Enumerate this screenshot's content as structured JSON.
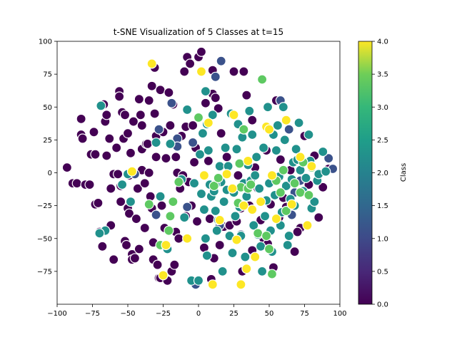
{
  "chart_data": {
    "type": "scatter",
    "title": "t-SNE Visualization of 5 Classes at t=15",
    "xlabel": "",
    "ylabel": "",
    "xlim": [
      -100,
      100
    ],
    "ylim": [
      -100,
      100
    ],
    "xticks": [
      "−100",
      "−75",
      "−50",
      "−25",
      "0",
      "25",
      "50",
      "75",
      "100"
    ],
    "yticks": [
      "−75",
      "−50",
      "−25",
      "0",
      "25",
      "50",
      "75",
      "100"
    ],
    "colorbar": {
      "label": "Class",
      "range": [
        0,
        4
      ],
      "ticks": [
        "0.0",
        "0.5",
        "1.0",
        "1.5",
        "2.0",
        "2.5",
        "3.0",
        "3.5",
        "4.0"
      ],
      "colormap": "viridis"
    },
    "grid": false,
    "series": [
      {
        "class": 0,
        "color": "#440154",
        "points": [
          [
            -93,
            4
          ],
          [
            -89,
            -8
          ],
          [
            -86,
            -8
          ],
          [
            -83,
            41
          ],
          [
            -83,
            29
          ],
          [
            -82,
            26
          ],
          [
            -80,
            -9
          ],
          [
            -77,
            -9
          ],
          [
            -76,
            14
          ],
          [
            -73,
            14
          ],
          [
            -74,
            31
          ],
          [
            -73,
            -24
          ],
          [
            -71,
            -23
          ],
          [
            -70,
            -45
          ],
          [
            -68,
            -56
          ],
          [
            -67,
            52
          ],
          [
            -66,
            39
          ],
          [
            -65,
            44
          ],
          [
            -65,
            13
          ],
          [
            -63,
            26
          ],
          [
            -62,
            -40
          ],
          [
            -62,
            -12
          ],
          [
            -60,
            -1
          ],
          [
            -58,
            19
          ],
          [
            -57,
            -1
          ],
          [
            -56,
            62
          ],
          [
            -56,
            58
          ],
          [
            -55,
            -10
          ],
          [
            -55,
            -22
          ],
          [
            -54,
            46
          ],
          [
            -53,
            26
          ],
          [
            -52,
            44
          ],
          [
            -52,
            -52
          ],
          [
            -51,
            -55
          ],
          [
            -50,
            30
          ],
          [
            -50,
            -27
          ],
          [
            -49,
            -2
          ],
          [
            -49,
            -31
          ],
          [
            -48,
            15
          ],
          [
            -47,
            -62
          ],
          [
            -47,
            -66
          ],
          [
            -46,
            39
          ],
          [
            -45,
            -65
          ],
          [
            -44,
            -35
          ],
          [
            -43,
            -12
          ],
          [
            -42,
            56
          ],
          [
            -41,
            44
          ],
          [
            -40,
            36
          ],
          [
            -40,
            18
          ],
          [
            -40,
            2
          ],
          [
            -38,
            -42
          ],
          [
            -38,
            -8
          ],
          [
            -37,
            22
          ],
          [
            -36,
            22
          ],
          [
            -35,
            55
          ],
          [
            -35,
            0
          ],
          [
            -34,
            -18
          ],
          [
            -33,
            66
          ],
          [
            -33,
            -27
          ],
          [
            -32,
            -53
          ],
          [
            -32,
            -66
          ],
          [
            -31,
            80
          ],
          [
            -31,
            45
          ],
          [
            -30,
            28
          ],
          [
            -30,
            12
          ],
          [
            -29,
            -70
          ],
          [
            -28,
            -80
          ],
          [
            -27,
            63
          ],
          [
            -27,
            -80
          ],
          [
            -26,
            -25
          ],
          [
            -25,
            31
          ],
          [
            -24,
            -42
          ],
          [
            -23,
            11
          ],
          [
            -22,
            -82
          ],
          [
            -21,
            61
          ],
          [
            -20,
            36
          ],
          [
            -19,
            -75
          ],
          [
            -17,
            -70
          ],
          [
            -16,
            12
          ],
          [
            -16,
            -45
          ],
          [
            -15,
            0
          ],
          [
            -13,
            -12
          ],
          [
            -12,
            28
          ],
          [
            -11,
            -2
          ],
          [
            -10,
            77
          ],
          [
            -9,
            -33
          ],
          [
            -9,
            35
          ],
          [
            -8,
            88
          ],
          [
            -7,
            -7
          ],
          [
            -6,
            83
          ],
          [
            -5,
            -25
          ],
          [
            -4,
            36
          ],
          [
            -3,
            8
          ],
          [
            -2,
            19
          ],
          [
            -1,
            -37
          ],
          [
            0,
            88
          ],
          [
            2,
            92
          ],
          [
            3,
            30
          ],
          [
            5,
            53
          ],
          [
            7,
            9
          ],
          [
            8,
            -35
          ],
          [
            9,
            -81
          ],
          [
            10,
            78
          ],
          [
            10,
            60
          ],
          [
            11,
            -65
          ],
          [
            12,
            57
          ],
          [
            14,
            49
          ],
          [
            15,
            -55
          ],
          [
            16,
            30
          ],
          [
            18,
            -41
          ],
          [
            20,
            12
          ],
          [
            22,
            -40
          ],
          [
            25,
            77
          ],
          [
            27,
            -37
          ],
          [
            28,
            -2
          ],
          [
            30,
            -27
          ],
          [
            31,
            -75
          ],
          [
            32,
            77
          ],
          [
            34,
            59
          ],
          [
            36,
            -25
          ],
          [
            38,
            -59
          ],
          [
            40,
            4
          ],
          [
            42,
            -12
          ],
          [
            44,
            -36
          ],
          [
            46,
            -50
          ],
          [
            48,
            17
          ],
          [
            49,
            -54
          ],
          [
            51,
            -24
          ],
          [
            53,
            -72
          ],
          [
            55,
            55
          ],
          [
            57,
            -34
          ],
          [
            60,
            -19
          ],
          [
            62,
            -26
          ],
          [
            65,
            2
          ],
          [
            68,
            -60
          ],
          [
            72,
            -42
          ],
          [
            75,
            28
          ],
          [
            78,
            -9
          ],
          [
            82,
            13
          ],
          [
            85,
            -34
          ],
          [
            88,
            -11
          ],
          [
            92,
            3
          ],
          [
            -42,
            -58
          ],
          [
            -60,
            -66
          ],
          [
            -18,
            52
          ],
          [
            -14,
            -50
          ],
          [
            4,
            -57
          ],
          [
            38,
            40
          ],
          [
            58,
            10
          ],
          [
            70,
            -45
          ]
        ]
      },
      {
        "class": 1,
        "color": "#3b528b",
        "points": [
          [
            -45,
            -1
          ],
          [
            -30,
            -32
          ],
          [
            -28,
            33
          ],
          [
            -19,
            53
          ],
          [
            -15,
            26
          ],
          [
            -15,
            20
          ],
          [
            -8,
            -26
          ],
          [
            -4,
            23
          ],
          [
            -2,
            -85
          ],
          [
            12,
            73
          ],
          [
            15,
            -40
          ],
          [
            16,
            85
          ],
          [
            30,
            -47
          ],
          [
            58,
            55
          ],
          [
            64,
            33
          ],
          [
            66,
            -32
          ],
          [
            68,
            -15
          ],
          [
            72,
            -6
          ],
          [
            92,
            11
          ],
          [
            95,
            3
          ]
        ]
      },
      {
        "class": 2,
        "color": "#21918c",
        "points": [
          [
            -69,
            51
          ],
          [
            -66,
            -44
          ],
          [
            -54,
            -9
          ],
          [
            -50,
            -1
          ],
          [
            -48,
            -22
          ],
          [
            -30,
            23
          ],
          [
            -27,
            -18
          ],
          [
            -22,
            -58
          ],
          [
            -20,
            22
          ],
          [
            -12,
            -5
          ],
          [
            -10,
            -34
          ],
          [
            -8,
            48
          ],
          [
            -5,
            -82
          ],
          [
            -3,
            -8
          ],
          [
            0,
            -82
          ],
          [
            1,
            14
          ],
          [
            2,
            -16
          ],
          [
            3,
            30
          ],
          [
            4,
            -28
          ],
          [
            5,
            -50
          ],
          [
            6,
            -63
          ],
          [
            6,
            37
          ],
          [
            7,
            17
          ],
          [
            8,
            -9
          ],
          [
            9,
            -18
          ],
          [
            10,
            44
          ],
          [
            11,
            -14
          ],
          [
            12,
            -29
          ],
          [
            13,
            -44
          ],
          [
            14,
            -36
          ],
          [
            15,
            5
          ],
          [
            16,
            -7
          ],
          [
            17,
            -75
          ],
          [
            18,
            -22
          ],
          [
            19,
            19
          ],
          [
            20,
            -13
          ],
          [
            21,
            5
          ],
          [
            22,
            -48
          ],
          [
            23,
            45
          ],
          [
            24,
            -61
          ],
          [
            25,
            -15
          ],
          [
            26,
            -33
          ],
          [
            27,
            18
          ],
          [
            28,
            37
          ],
          [
            29,
            -26
          ],
          [
            30,
            -48
          ],
          [
            31,
            27
          ],
          [
            32,
            -8
          ],
          [
            33,
            -64
          ],
          [
            34,
            -18
          ],
          [
            35,
            6
          ],
          [
            36,
            47
          ],
          [
            37,
            -6
          ],
          [
            38,
            29
          ],
          [
            39,
            -40
          ],
          [
            40,
            -2
          ],
          [
            41,
            12
          ],
          [
            42,
            -47
          ],
          [
            43,
            -12
          ],
          [
            44,
            -56
          ],
          [
            45,
            -75
          ],
          [
            46,
            19
          ],
          [
            47,
            -33
          ],
          [
            48,
            -21
          ],
          [
            49,
            50
          ],
          [
            50,
            -8
          ],
          [
            51,
            -44
          ],
          [
            52,
            -60
          ],
          [
            53,
            29
          ],
          [
            54,
            -17
          ],
          [
            55,
            17
          ],
          [
            56,
            36
          ],
          [
            57,
            -3
          ],
          [
            58,
            -40
          ],
          [
            59,
            -30
          ],
          [
            60,
            50
          ],
          [
            61,
            25
          ],
          [
            62,
            -10
          ],
          [
            63,
            -55
          ],
          [
            64,
            -48
          ],
          [
            65,
            -20
          ],
          [
            66,
            -5
          ],
          [
            67,
            8
          ],
          [
            68,
            -25
          ],
          [
            69,
            18
          ],
          [
            70,
            10
          ],
          [
            71,
            38
          ],
          [
            72,
            2
          ],
          [
            74,
            -14
          ],
          [
            76,
            -4
          ],
          [
            78,
            29
          ],
          [
            79,
            9
          ],
          [
            80,
            -27
          ],
          [
            82,
            -22
          ],
          [
            84,
            -6
          ],
          [
            85,
            -1
          ],
          [
            88,
            16
          ],
          [
            90,
            1
          ],
          [
            -70,
            -46
          ],
          [
            5,
            62
          ],
          [
            12,
            -9
          ]
        ]
      },
      {
        "class": 3,
        "color": "#5ec962",
        "points": [
          [
            -35,
            -24
          ],
          [
            -27,
            -55
          ],
          [
            -21,
            -44
          ],
          [
            -20,
            -33
          ],
          [
            -18,
            -22
          ],
          [
            -14,
            -7
          ],
          [
            0,
            42
          ],
          [
            11,
            -10
          ],
          [
            14,
            -4
          ],
          [
            28,
            -23
          ],
          [
            29,
            7
          ],
          [
            30,
            -11
          ],
          [
            32,
            33
          ],
          [
            35,
            -12
          ],
          [
            37,
            -9
          ],
          [
            42,
            -46
          ],
          [
            45,
            71
          ],
          [
            48,
            -48
          ],
          [
            50,
            -58
          ],
          [
            52,
            -77
          ],
          [
            55,
            -6
          ],
          [
            58,
            -15
          ],
          [
            60,
            2
          ],
          [
            62,
            -29
          ],
          [
            68,
            -8
          ],
          [
            72,
            -15
          ],
          [
            74,
            8
          ],
          [
            78,
            -17
          ],
          [
            80,
            4
          ]
        ]
      },
      {
        "class": 4,
        "color": "#fde725",
        "points": [
          [
            -47,
            1
          ],
          [
            -33,
            83
          ],
          [
            -25,
            -78
          ],
          [
            -23,
            -55
          ],
          [
            -8,
            -50
          ],
          [
            2,
            77
          ],
          [
            4,
            -2
          ],
          [
            7,
            38
          ],
          [
            10,
            -85
          ],
          [
            15,
            -36
          ],
          [
            20,
            -1
          ],
          [
            24,
            -12
          ],
          [
            25,
            44
          ],
          [
            27,
            -51
          ],
          [
            30,
            -85
          ],
          [
            32,
            -25
          ],
          [
            34,
            -73
          ],
          [
            35,
            9
          ],
          [
            38,
            -28
          ],
          [
            40,
            -64
          ],
          [
            44,
            -22
          ],
          [
            48,
            35
          ],
          [
            50,
            33
          ],
          [
            52,
            -2
          ],
          [
            55,
            -35
          ],
          [
            62,
            40
          ],
          [
            66,
            -24
          ],
          [
            72,
            12
          ],
          [
            77,
            -40
          ],
          [
            80,
            5
          ]
        ]
      }
    ]
  }
}
